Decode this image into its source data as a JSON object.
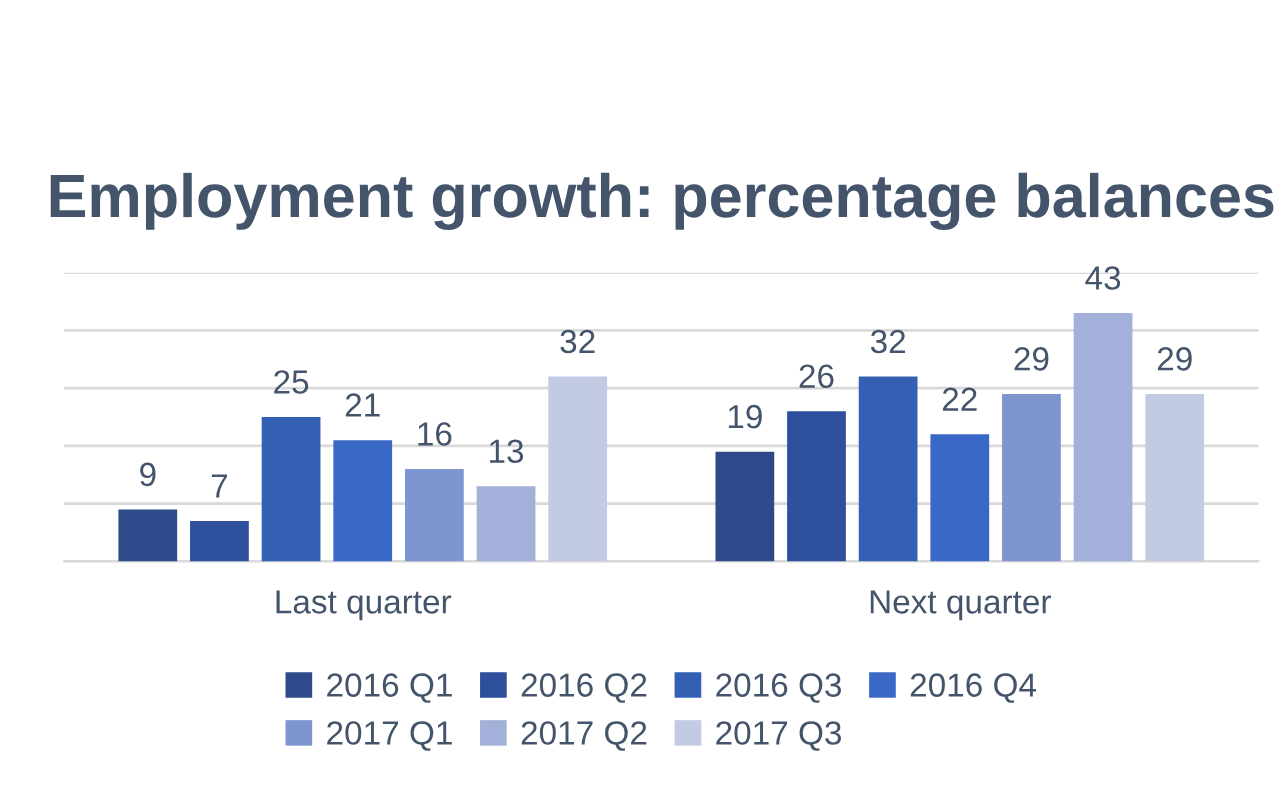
{
  "chart_data": {
    "type": "bar",
    "title": "Employment growth: percentage balances",
    "categories": [
      "Last quarter",
      "Next quarter"
    ],
    "series": [
      {
        "name": "2016 Q1",
        "color": "#2f4a8a",
        "values": [
          9,
          19
        ]
      },
      {
        "name": "2016 Q2",
        "color": "#2e4f9c",
        "values": [
          7,
          26
        ]
      },
      {
        "name": "2016 Q3",
        "color": "#3460b4",
        "values": [
          25,
          32
        ]
      },
      {
        "name": "2016 Q4",
        "color": "#3a68c6",
        "values": [
          21,
          22
        ]
      },
      {
        "name": "2017 Q1",
        "color": "#7f95cf",
        "values": [
          16,
          29
        ]
      },
      {
        "name": "2017 Q2",
        "color": "#a3b0d9",
        "values": [
          13,
          43
        ]
      },
      {
        "name": "2017 Q3",
        "color": "#c3cbe4",
        "values": [
          32,
          29
        ]
      }
    ],
    "ylim": [
      0,
      50
    ],
    "yticks": [
      {
        "value": 0,
        "label": null
      },
      {
        "value": 10,
        "label": null
      },
      {
        "value": 20,
        "label": null
      },
      {
        "value": 30,
        "label": null
      },
      {
        "value": 40,
        "label": null
      },
      {
        "value": 50,
        "label": null
      }
    ],
    "grid": "y",
    "legend": "bottom",
    "data_labels": true,
    "tick_labels": "x"
  }
}
